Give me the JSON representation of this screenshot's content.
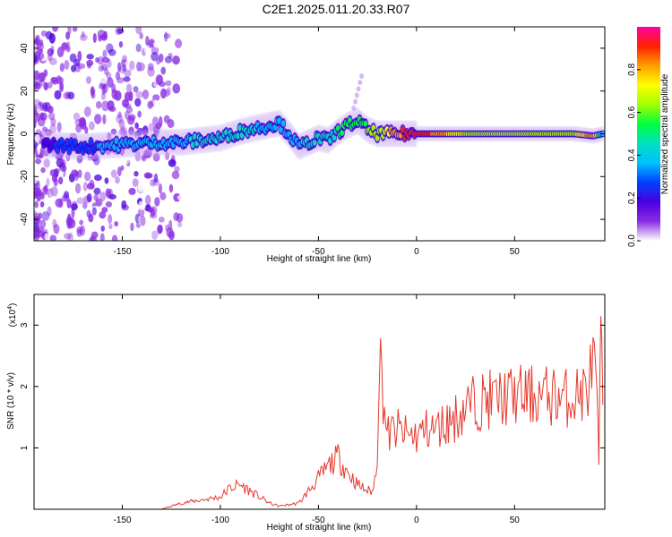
{
  "title": "C2E1.2025.011.20.33.R07",
  "colors": {
    "snr_line": "#e53a2e",
    "axis": "#000000",
    "colormap": [
      "#ffffff",
      "#8a2be2",
      "#4a00e0",
      "#0040ff",
      "#00c0ff",
      "#00e0c0",
      "#00ff40",
      "#a0ff00",
      "#ffff00",
      "#ffa000",
      "#ff2000",
      "#ff00a0"
    ]
  },
  "chart_data": [
    {
      "type": "heatmap",
      "xlabel": "Height of straight line (km)",
      "ylabel": "Frequency (Hz)",
      "xlim": [
        -195,
        96
      ],
      "ylim": [
        -50,
        50
      ],
      "x_ticks": [
        -150,
        -100,
        -50,
        0,
        50
      ],
      "y_ticks": [
        -40,
        -20,
        0,
        20,
        40
      ],
      "colorbar": {
        "label": "Normalized spectral amplitude",
        "range": [
          0,
          1
        ],
        "ticks": [
          "0.0",
          "0.2",
          "0.4",
          "0.6",
          "0.8"
        ],
        "tick_values": [
          0.0,
          0.2,
          0.4,
          0.6,
          0.8
        ]
      },
      "ridge": {
        "x": [
          -190,
          -170,
          -150,
          -130,
          -120,
          -110,
          -100,
          -90,
          -80,
          -70,
          -65,
          -60,
          -55,
          -50,
          -45,
          -40,
          -35,
          -30,
          -25,
          -20,
          -10,
          0,
          10,
          20,
          40,
          60,
          80,
          90,
          95
        ],
        "y": [
          -5,
          -6,
          -5,
          -4,
          -4,
          -3,
          -2,
          1,
          3,
          5,
          0,
          -6,
          -4,
          -2,
          -3,
          1,
          4,
          6,
          2,
          0,
          0,
          0,
          0,
          0,
          0,
          0,
          0,
          -1,
          0
        ],
        "amplitude": [
          0.2,
          0.3,
          0.35,
          0.35,
          0.4,
          0.42,
          0.45,
          0.45,
          0.4,
          0.4,
          0.35,
          0.4,
          0.45,
          0.45,
          0.45,
          0.5,
          0.55,
          0.5,
          0.6,
          0.6,
          0.85,
          0.9,
          0.85,
          0.7,
          0.6,
          0.62,
          0.65,
          0.85,
          0.4
        ]
      }
    },
    {
      "type": "line",
      "xlabel": "Height of straight line (km)",
      "ylabel": "SNR (10 * v/v)",
      "y_multiplier": "(x10",
      "y_multiplier_exp": "4",
      "y_multiplier_close": ")",
      "xlim": [
        -195,
        96
      ],
      "ylim": [
        0,
        3.5
      ],
      "x_ticks": [
        -150,
        -100,
        -50,
        0,
        50
      ],
      "y_ticks": [
        1,
        2,
        3
      ],
      "series": [
        {
          "x": [
            -195,
            -150,
            -130,
            -120,
            -110,
            -100,
            -95,
            -90,
            -85,
            -80,
            -75,
            -70,
            -60,
            -55,
            -50,
            -45,
            -40,
            -35,
            -30,
            -25,
            -22,
            -20,
            -19,
            -15,
            -10,
            -5,
            0,
            5,
            10,
            15,
            20,
            25,
            30,
            40,
            50,
            60,
            70,
            75,
            80,
            85,
            88,
            90,
            92,
            93,
            94,
            95
          ],
          "y": [
            0.0,
            0.0,
            0.0,
            0.1,
            0.15,
            0.2,
            0.35,
            0.4,
            0.3,
            0.2,
            0.1,
            0.05,
            0.1,
            0.3,
            0.5,
            0.7,
            0.85,
            0.6,
            0.4,
            0.3,
            0.3,
            0.9,
            2.6,
            1.2,
            1.3,
            1.2,
            1.2,
            1.3,
            1.3,
            1.4,
            1.5,
            1.65,
            1.75,
            1.8,
            1.85,
            1.85,
            1.85,
            1.8,
            1.85,
            1.9,
            2.0,
            2.5,
            1.8,
            0.6,
            3.4,
            1.7
          ]
        }
      ]
    }
  ]
}
